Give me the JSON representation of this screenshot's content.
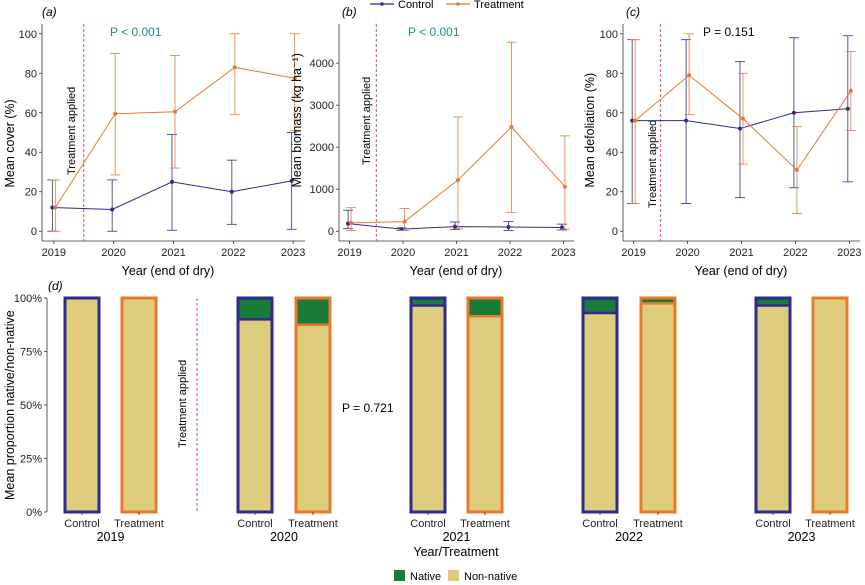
{
  "colors": {
    "control": "#2E2B8F",
    "treatment": "#E87A2E",
    "native": "#1A7A38",
    "non_native": "#DFCC7C",
    "p_significant": "#1E8E8A",
    "p_ns": "#000000",
    "treatment_line": "#D9534F"
  },
  "legend_top": {
    "items": [
      "Control",
      "Treatment"
    ]
  },
  "legend_bottom": {
    "items": [
      "Native",
      "Non-native"
    ]
  },
  "treatment_note": "Treatment applied",
  "chart_data": [
    {
      "id": "a",
      "panel_label": "(a)",
      "type": "line",
      "x": [
        2019,
        2020,
        2021,
        2022,
        2023
      ],
      "xlabel": "Year (end of dry)",
      "ylabel": "Mean cover (%)",
      "ylim": [
        0,
        100
      ],
      "yticks": [
        0,
        20,
        40,
        60,
        80,
        100
      ],
      "p_text": "P < 0.001",
      "p_significant": true,
      "treatment_at": 2019.5,
      "series": [
        {
          "name": "Control",
          "values": [
            12,
            11,
            25,
            20,
            25.5
          ],
          "err_low": [
            0,
            0,
            0.5,
            3.5,
            1
          ],
          "err_high": [
            26,
            26,
            49,
            36,
            50
          ]
        },
        {
          "name": "Treatment",
          "values": [
            12,
            59.5,
            60.5,
            83,
            77.5
          ],
          "err_low": [
            0,
            28.5,
            32,
            59,
            51
          ],
          "err_high": [
            26,
            90,
            89,
            100,
            100
          ]
        }
      ]
    },
    {
      "id": "b",
      "panel_label": "(b)",
      "type": "line",
      "x": [
        2019,
        2020,
        2021,
        2022,
        2023
      ],
      "xlabel": "Year (end of dry)",
      "ylabel": "Mean biomass (kg ha⁻¹)",
      "ylim": [
        0,
        4700
      ],
      "yticks": [
        0,
        1000,
        2000,
        3000,
        4000
      ],
      "p_text": "P < 0.001",
      "p_significant": true,
      "treatment_at": 2019.5,
      "series": [
        {
          "name": "Control",
          "values": [
            180,
            50,
            110,
            100,
            90
          ],
          "err_low": [
            60,
            20,
            40,
            20,
            30
          ],
          "err_high": [
            500,
            80,
            220,
            230,
            170
          ]
        },
        {
          "name": "Treatment",
          "values": [
            200,
            230,
            1220,
            2480,
            1060
          ],
          "err_low": [
            20,
            20,
            60,
            450,
            50
          ],
          "err_high": [
            560,
            540,
            2720,
            4500,
            2270
          ]
        }
      ]
    },
    {
      "id": "c",
      "panel_label": "(c)",
      "type": "line",
      "x": [
        2019,
        2020,
        2021,
        2022,
        2023
      ],
      "xlabel": "Year (end of dry)",
      "ylabel": "Mean defoliation (%)",
      "ylim": [
        0,
        100
      ],
      "yticks": [
        0,
        20,
        40,
        60,
        80,
        100
      ],
      "p_text": "P = 0.151",
      "p_significant": false,
      "treatment_at": 2019.5,
      "series": [
        {
          "name": "Control",
          "values": [
            56,
            56,
            52,
            60,
            62
          ],
          "err_low": [
            14,
            14,
            17,
            22,
            25
          ],
          "err_high": [
            97,
            97,
            86,
            98,
            99
          ]
        },
        {
          "name": "Treatment",
          "values": [
            56,
            79,
            57,
            31,
            71
          ],
          "err_low": [
            14,
            59,
            34,
            9,
            51
          ],
          "err_high": [
            97,
            100,
            80,
            53,
            91
          ]
        }
      ]
    },
    {
      "id": "d",
      "panel_label": "(d)",
      "type": "bar",
      "stacked": true,
      "xlabel": "Year/Treatment",
      "ylabel": "Mean proportion native/non-native",
      "ylim": [
        0,
        1
      ],
      "yticks": [
        "0%",
        "25%",
        "50%",
        "75%",
        "100%"
      ],
      "p_text": "P = 0.721",
      "p_significant": false,
      "years": [
        "2019",
        "2020",
        "2021",
        "2022",
        "2023"
      ],
      "groups": [
        "Control",
        "Treatment"
      ],
      "series": [
        {
          "name": "Native",
          "values": {
            "Control": [
              0,
              0.1,
              0.035,
              0.07,
              0.035
            ],
            "Treatment": [
              0,
              0.125,
              0.085,
              0.025,
              0
            ]
          }
        },
        {
          "name": "Non-native",
          "values": {
            "Control": [
              1,
              0.9,
              0.965,
              0.93,
              0.965
            ],
            "Treatment": [
              1,
              0.875,
              0.915,
              0.975,
              1
            ]
          }
        }
      ]
    }
  ]
}
